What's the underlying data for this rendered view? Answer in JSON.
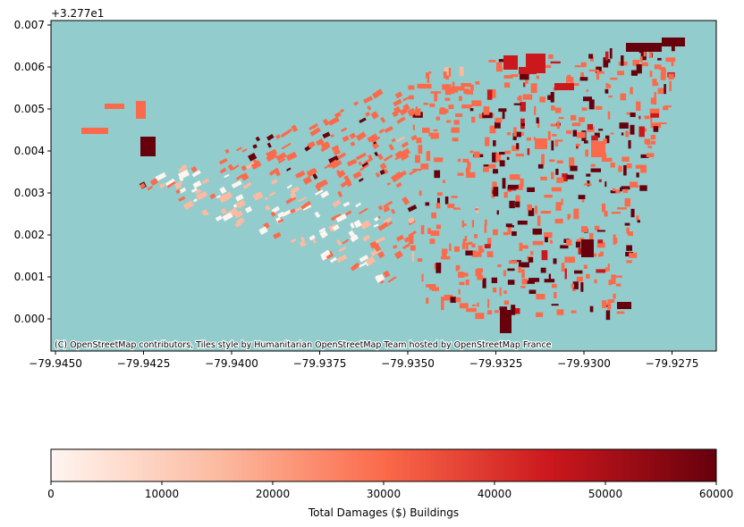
{
  "map": {
    "type": "choropleth-buildings",
    "basemap_color": "#93cccc",
    "attribution": "(C) OpenStreetMap contributors, Tiles style by Humanitarian OpenStreetMap Team hosted by OpenStreetMap France",
    "y_offset_label": "+3.277e1",
    "x_ticks": [
      "−79.9450",
      "−79.9425",
      "−79.9400",
      "−79.9375",
      "−79.9350",
      "−79.9325",
      "−79.9300",
      "−79.9275"
    ],
    "y_ticks": [
      "0.000",
      "0.001",
      "0.002",
      "0.003",
      "0.004",
      "0.005",
      "0.006",
      "0.007"
    ],
    "x_range": [
      -79.9455,
      -79.9262
    ],
    "y_range": [
      -0.00075,
      0.0071
    ]
  },
  "colorbar": {
    "label": "Total Damages ($) Buildings",
    "ticks": [
      "0",
      "10000",
      "20000",
      "30000",
      "40000",
      "50000",
      "60000"
    ],
    "range": [
      0,
      60000
    ],
    "colors": [
      "#fff5f0",
      "#fcbba1",
      "#fb6a4a",
      "#cb181d",
      "#67000d"
    ]
  }
}
